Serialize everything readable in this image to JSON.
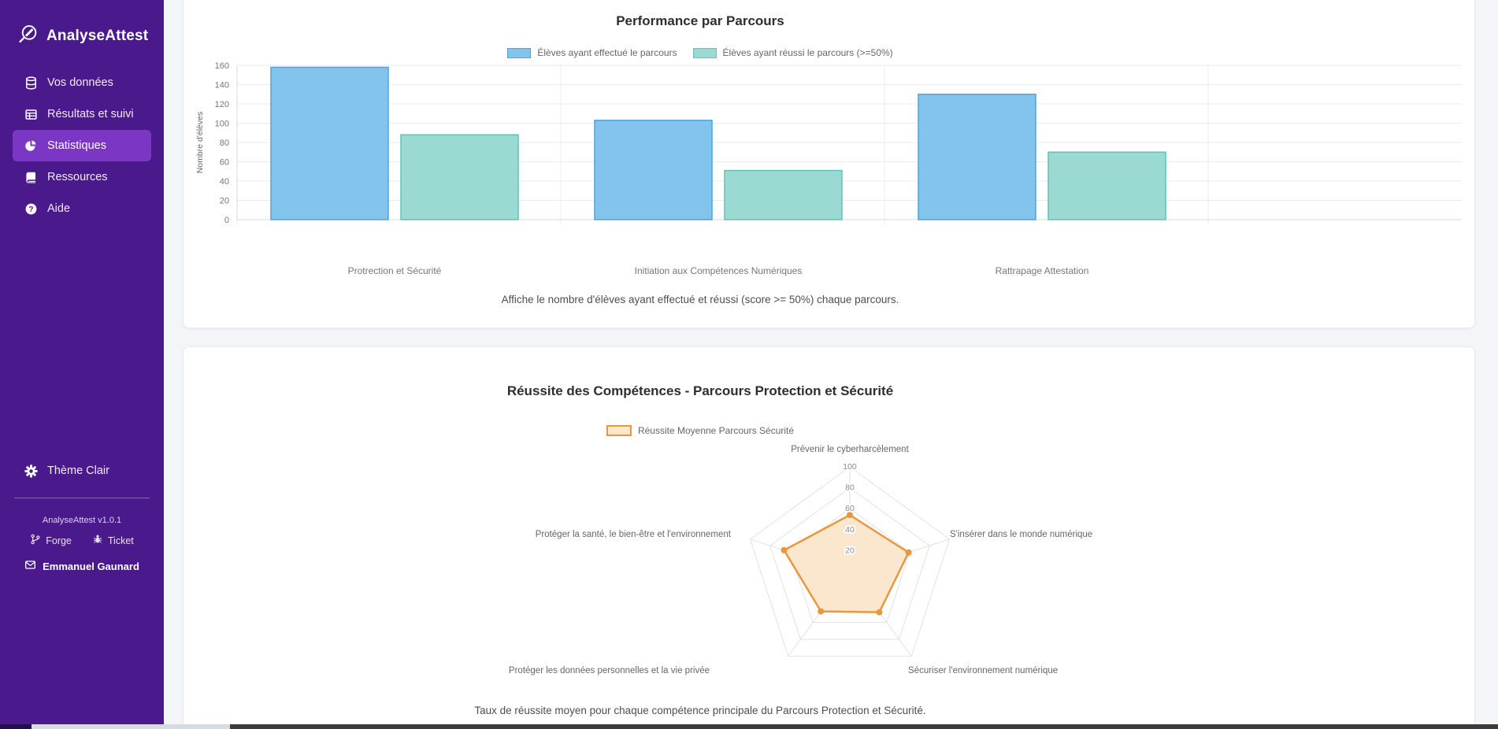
{
  "theme": {
    "sidebar_bg": "#4a1a8c",
    "sidebar_active_bg": "#7c36c4",
    "card_bg": "#ffffff",
    "page_bg": "#f4f5f8"
  },
  "sidebar": {
    "brand": "AnalyseAttest",
    "nav": [
      {
        "label": "Vos données",
        "icon": "database-icon",
        "active": false
      },
      {
        "label": "Résultats et suivi",
        "icon": "table-icon",
        "active": false
      },
      {
        "label": "Statistiques",
        "icon": "pie-chart-icon",
        "active": true
      },
      {
        "label": "Ressources",
        "icon": "book-icon",
        "active": false
      },
      {
        "label": "Aide",
        "icon": "help-icon",
        "active": false
      }
    ],
    "theme_toggle": "Thème Clair",
    "version": "AnalyseAttest v1.0.1",
    "links": [
      {
        "label": "Forge",
        "icon": "git-branch-icon"
      },
      {
        "label": "Ticket",
        "icon": "bug-icon"
      }
    ],
    "user": "Emmanuel Gaunard"
  },
  "chart_data": [
    {
      "type": "bar",
      "title": "Performance par Parcours",
      "categories": [
        "Protrection et Sécurité",
        "Initiation aux Compétences Numériques",
        "Rattrapage Attestation"
      ],
      "series": [
        {
          "name": "Élèves ayant effectué le parcours",
          "color": "#82c4ec",
          "border": "#4ba6dd",
          "values": [
            158,
            103,
            130
          ]
        },
        {
          "name": "Élèves ayant réussi le parcours (>=50%)",
          "color": "#9bdad2",
          "border": "#5fc4b7",
          "values": [
            88,
            51,
            70
          ]
        }
      ],
      "xlabel": "",
      "ylabel": "Nombre d'élèves",
      "ylim": [
        0,
        160
      ],
      "ytick_step": 20,
      "grid": true,
      "legend_position": "top",
      "caption": "Affiche le nombre d'élèves ayant effectué et réussi (score >= 50%) chaque parcours."
    },
    {
      "type": "radar",
      "title": "Réussite des Compétences - Parcours Protection et Sécurité",
      "legend": "Réussite Moyenne Parcours Sécurité",
      "axes": [
        "Prévenir le cyberharcèlement",
        "S'insérer dans le monde numérique",
        "Sécuriser l'environnement numérique",
        "Protéger les données personnelles et la vie privée",
        "Protéger la santé, le bien-être et l'environnement"
      ],
      "values": [
        54,
        59,
        48,
        47,
        66
      ],
      "rlim": [
        0,
        100
      ],
      "rtick_step": 20,
      "series_color": "#e9973e",
      "fill_color": "#fbe7cd",
      "legend_position": "top",
      "caption": "Taux de réussite moyen pour chaque compétence principale du Parcours Protection et Sécurité."
    }
  ]
}
